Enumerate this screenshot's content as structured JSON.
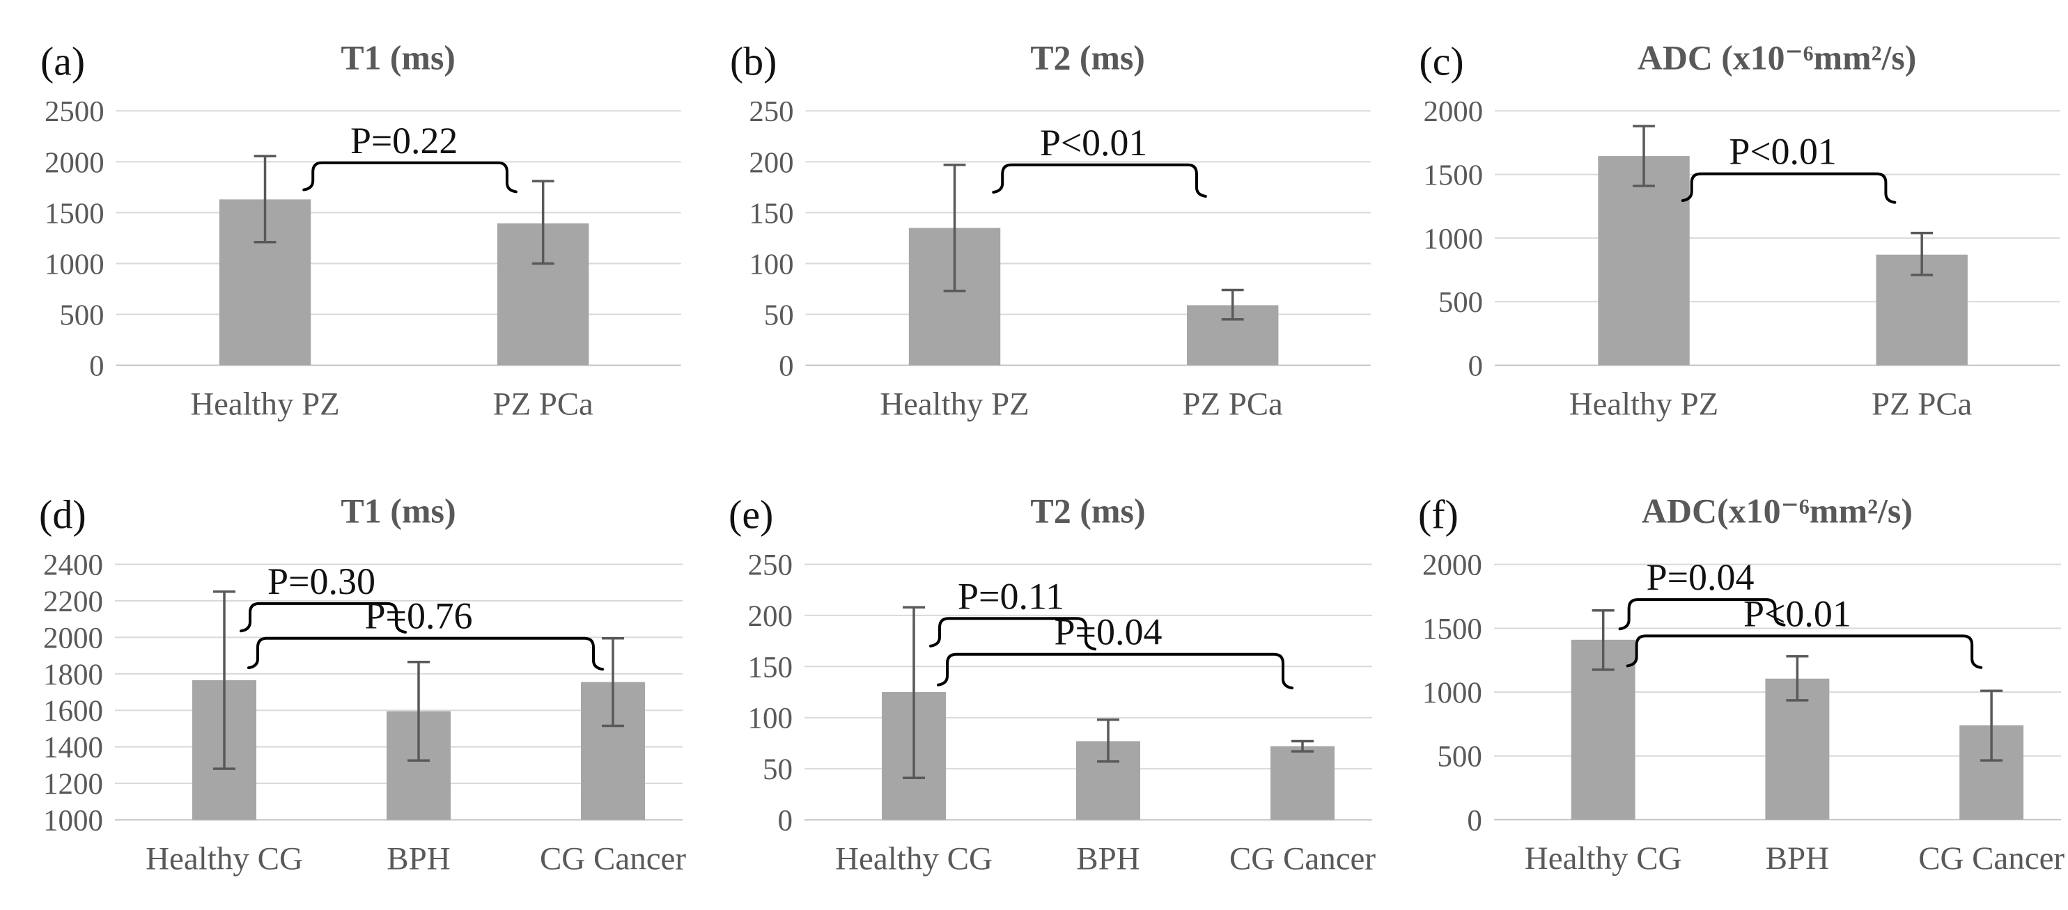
{
  "figure": {
    "background": "#ffffff",
    "bar_color": "#a6a6a6",
    "error_bar_color": "#595959",
    "gridline_color": "#d9d9d9",
    "baseline_color": "#c2c2c2",
    "text_color": "#595959",
    "title_color": "#595959",
    "annotation_color": "#111111",
    "bracket_color": "#000000"
  },
  "chart_data": [
    {
      "panel_letter": "(a)",
      "type": "bar",
      "title": "T1 (ms)",
      "categories": [
        "Healthy PZ",
        "PZ PCa"
      ],
      "values": [
        1630,
        1395
      ],
      "error_low": [
        1210,
        1000
      ],
      "error_high": [
        2055,
        1810
      ],
      "ylim": [
        0,
        2500
      ],
      "yticks": [
        0,
        500,
        1000,
        1500,
        2000,
        2500
      ],
      "grid": true,
      "legend": "none",
      "brackets": [
        {
          "label": "P=0.22",
          "between": [
            0,
            1
          ],
          "y_top": 1990,
          "y_leg1": 1725,
          "y_leg2": 1705
        }
      ]
    },
    {
      "panel_letter": "(b)",
      "type": "bar",
      "title": "T2 (ms)",
      "categories": [
        "Healthy PZ",
        "PZ PCa"
      ],
      "values": [
        135,
        59
      ],
      "error_low": [
        73,
        45
      ],
      "error_high": [
        197,
        74
      ],
      "ylim": [
        0,
        250
      ],
      "yticks": [
        0,
        50,
        100,
        150,
        200,
        250
      ],
      "grid": true,
      "legend": "none",
      "brackets": [
        {
          "label": "P<0.01",
          "between": [
            0,
            1
          ],
          "y_top": 197,
          "y_leg1": 170,
          "y_leg2": 166
        }
      ]
    },
    {
      "panel_letter": "(c)",
      "type": "bar",
      "title": "ADC (x10⁻⁶mm²/s)",
      "categories": [
        "Healthy PZ",
        "PZ PCa"
      ],
      "values": [
        1645,
        870
      ],
      "error_low": [
        1410,
        710
      ],
      "error_high": [
        1880,
        1040
      ],
      "ylim": [
        0,
        2000
      ],
      "yticks": [
        0,
        500,
        1000,
        1500,
        2000
      ],
      "grid": true,
      "legend": "none",
      "brackets": [
        {
          "label": "P<0.01",
          "between": [
            0,
            1
          ],
          "y_top": 1505,
          "y_leg1": 1295,
          "y_leg2": 1280
        }
      ]
    },
    {
      "panel_letter": "(d)",
      "type": "bar",
      "title": "T1 (ms)",
      "categories": [
        "Healthy CG",
        "BPH",
        "CG Cancer"
      ],
      "values": [
        1765,
        1595,
        1755
      ],
      "error_low": [
        1280,
        1325,
        1515
      ],
      "error_high": [
        2250,
        1865,
        1995
      ],
      "ylim": [
        1000,
        2400
      ],
      "yticks": [
        1000,
        1200,
        1400,
        1600,
        1800,
        2000,
        2200,
        2400
      ],
      "grid": true,
      "legend": "none",
      "brackets": [
        {
          "label": "P=0.30",
          "between": [
            0,
            1
          ],
          "y_top": 2185,
          "y_leg1": 2035,
          "y_leg2": 2028
        },
        {
          "label": "P=0.76",
          "between": [
            0,
            2
          ],
          "y_top": 1995,
          "y_leg1": 1833,
          "y_leg2": 1825
        }
      ]
    },
    {
      "panel_letter": "(e)",
      "type": "bar",
      "title": "T2 (ms)",
      "categories": [
        "Healthy CG",
        "BPH",
        "CG Cancer"
      ],
      "values": [
        125,
        77,
        72
      ],
      "error_low": [
        41,
        57,
        67
      ],
      "error_high": [
        208,
        98,
        77
      ],
      "ylim": [
        0,
        250
      ],
      "yticks": [
        0,
        50,
        100,
        150,
        200,
        250
      ],
      "grid": true,
      "legend": "none",
      "brackets": [
        {
          "label": "P=0.11",
          "between": [
            0,
            1
          ],
          "y_top": 197,
          "y_leg1": 170,
          "y_leg2": 167
        },
        {
          "label": "P=0.04",
          "between": [
            0,
            2
          ],
          "y_top": 162,
          "y_leg1": 132,
          "y_leg2": 129
        }
      ]
    },
    {
      "panel_letter": "(f)",
      "type": "bar",
      "title": "ADC(x10⁻⁶mm²/s)",
      "categories": [
        "Healthy CG",
        "BPH",
        "CG Cancer"
      ],
      "values": [
        1410,
        1105,
        740
      ],
      "error_low": [
        1175,
        935,
        465
      ],
      "error_high": [
        1640,
        1280,
        1010
      ],
      "ylim": [
        0,
        2000
      ],
      "yticks": [
        0,
        500,
        1000,
        1500,
        2000
      ],
      "grid": true,
      "legend": "none",
      "brackets": [
        {
          "label": "P=0.04",
          "between": [
            0,
            1
          ],
          "y_top": 1725,
          "y_leg1": 1495,
          "y_leg2": 1525
        },
        {
          "label": "P<0.01",
          "between": [
            0,
            2
          ],
          "y_top": 1440,
          "y_leg1": 1205,
          "y_leg2": 1192
        }
      ]
    }
  ]
}
